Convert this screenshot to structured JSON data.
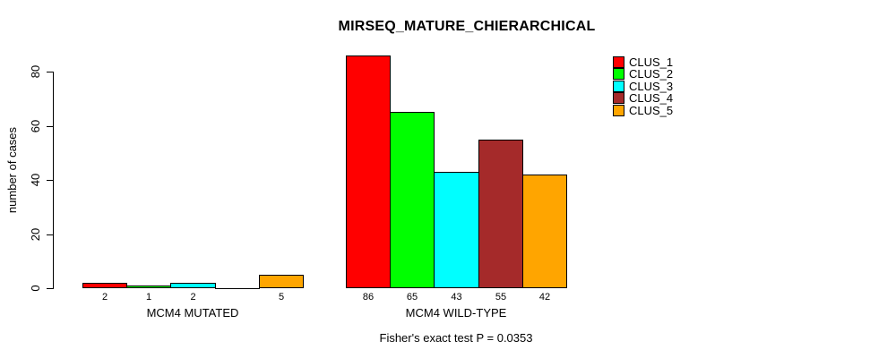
{
  "chart_data": {
    "type": "bar",
    "title": "MIRSEQ_MATURE_CHIERARCHICAL",
    "ylabel": "number of cases",
    "xlabel": "",
    "annotation": "Fisher's exact test P = 0.0353",
    "yticks": [
      0,
      20,
      40,
      60,
      80
    ],
    "ylim": [
      0,
      86
    ],
    "grid": false,
    "legend_position": "topright",
    "bar_value_labels_shown": true,
    "series_names": [
      "CLUS_1",
      "CLUS_2",
      "CLUS_3",
      "CLUS_4",
      "CLUS_5"
    ],
    "colors": [
      "#FF0000",
      "#00FF00",
      "#00FFFF",
      "#A52A2A",
      "#FFA500"
    ],
    "groups": [
      {
        "label": "MCM4 MUTATED",
        "values": [
          2,
          1,
          2,
          0,
          5
        ]
      },
      {
        "label": "MCM4 WILD-TYPE",
        "values": [
          86,
          65,
          43,
          55,
          42
        ]
      }
    ]
  }
}
